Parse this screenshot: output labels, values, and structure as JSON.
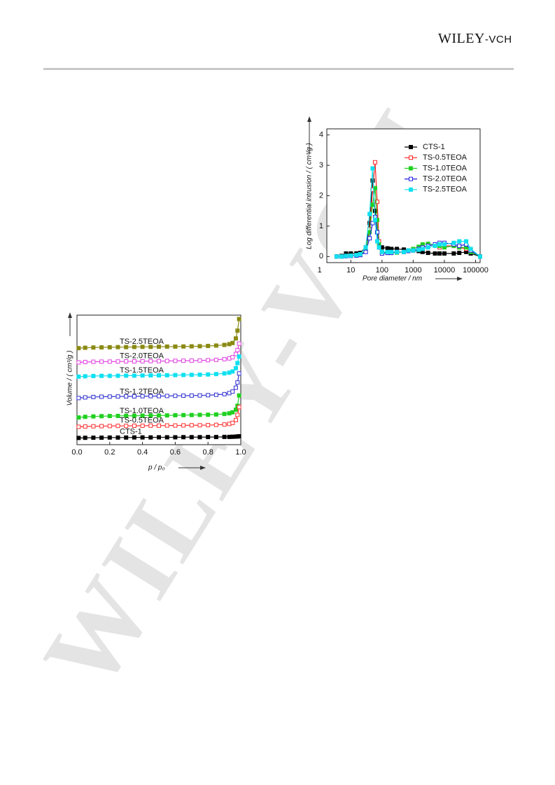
{
  "header": {
    "logo_main": "WILEY",
    "logo_suffix": "-VCH"
  },
  "watermark": "WILEY-VCH",
  "chart_data": [
    {
      "type": "line",
      "log_x": true,
      "x_label": "Pore diameter / nm",
      "y_label": "Log differential intrusion / ( cm³/g )",
      "xlim": [
        1.7,
        140000
      ],
      "xticks": [
        1,
        10,
        100,
        1000,
        10000,
        100000
      ],
      "ylim": [
        -0.2,
        4.2
      ],
      "yticks": [
        0,
        1,
        2,
        3,
        4
      ],
      "legend": "upper-right",
      "x": [
        3.5,
        5,
        7,
        10,
        15,
        20,
        30,
        40,
        50,
        60,
        70,
        80,
        100,
        150,
        200,
        300,
        500,
        700,
        1000,
        1500,
        2000,
        3000,
        5000,
        7000,
        10000,
        20000,
        30000,
        50000,
        70000,
        140000
      ],
      "series": [
        {
          "name": "CTS-1",
          "color": "#000000",
          "marker_fill": true,
          "values": [
            0,
            0.02,
            0.1,
            0.1,
            0.1,
            0.12,
            0.3,
            1.1,
            2.5,
            1.5,
            0.8,
            0.4,
            0.3,
            0.27,
            0.25,
            0.25,
            0.23,
            0.2,
            0.2,
            0.18,
            0.15,
            0.12,
            0.1,
            0.1,
            0.1,
            0.1,
            0.12,
            0.15,
            0.1,
            0
          ]
        },
        {
          "name": "TS-0.5TEOA",
          "color": "#ff2020",
          "marker_fill": false,
          "values": [
            0,
            0,
            0.02,
            0.03,
            0.03,
            0.05,
            0.2,
            0.9,
            2.2,
            3.1,
            1.8,
            0.5,
            0.1,
            0.12,
            0.13,
            0.15,
            0.15,
            0.18,
            0.2,
            0.25,
            0.3,
            0.35,
            0.4,
            0.3,
            0.35,
            0.35,
            0.3,
            0.25,
            0.2,
            0
          ]
        },
        {
          "name": "TS-1.0TEOA",
          "color": "#20d020",
          "marker_fill": true,
          "values": [
            0,
            0,
            0.02,
            0.03,
            0.04,
            0.06,
            0.2,
            0.8,
            1.7,
            2.25,
            1.2,
            0.4,
            0.15,
            0.12,
            0.12,
            0.13,
            0.15,
            0.2,
            0.25,
            0.32,
            0.4,
            0.42,
            0.38,
            0.35,
            0.3,
            0.35,
            0.3,
            0.3,
            0.15,
            0
          ]
        },
        {
          "name": "TS-2.0TEOA",
          "color": "#2020e0",
          "marker_fill": false,
          "values": [
            0,
            0,
            0.01,
            0.02,
            0.03,
            0.05,
            0.15,
            0.6,
            1.1,
            1.3,
            0.8,
            0.3,
            0.1,
            0.12,
            0.12,
            0.15,
            0.15,
            0.18,
            0.2,
            0.25,
            0.3,
            0.35,
            0.4,
            0.45,
            0.45,
            0.4,
            0.35,
            0.4,
            0.2,
            0
          ]
        },
        {
          "name": "TS-2.5TEOA",
          "color": "#10e0f0",
          "marker_fill": true,
          "values": [
            0,
            0,
            0.02,
            0.03,
            0.05,
            0.08,
            0.3,
            1.4,
            2.9,
            1.2,
            0.5,
            0.3,
            0.15,
            0.15,
            0.15,
            0.15,
            0.15,
            0.2,
            0.2,
            0.22,
            0.25,
            0.3,
            0.35,
            0.4,
            0.4,
            0.45,
            0.5,
            0.5,
            0.25,
            0
          ]
        }
      ]
    },
    {
      "type": "line",
      "log_x": false,
      "series_labels": true,
      "x_label": "p / p₀",
      "y_label": "Volume / ( cm³/g )",
      "xlim": [
        0,
        1
      ],
      "xticks": [
        {
          "value": 0,
          "label": "0.0"
        },
        0.2,
        0.4,
        0.6,
        0.8,
        {
          "value": 1,
          "label": "1.0"
        }
      ],
      "ylim": [
        0,
        100
      ],
      "x": [
        0.01,
        0.05,
        0.1,
        0.15,
        0.2,
        0.25,
        0.3,
        0.35,
        0.4,
        0.45,
        0.5,
        0.55,
        0.6,
        0.65,
        0.7,
        0.75,
        0.8,
        0.85,
        0.9,
        0.93,
        0.95,
        0.97,
        0.98,
        0.99
      ],
      "series": [
        {
          "name": "TS-2.5TEOA",
          "color": "#8a8a14",
          "marker_fill": true,
          "values": [
            74.5,
            74.8,
            75,
            75.1,
            75.2,
            75.3,
            75.3,
            75.4,
            75.5,
            75.5,
            75.6,
            75.7,
            75.7,
            75.8,
            75.9,
            76,
            76.2,
            76.5,
            77,
            77.6,
            78.5,
            82,
            88,
            97
          ]
        },
        {
          "name": "TS-2.0TEOA",
          "color": "#e040e0",
          "marker_fill": false,
          "values": [
            63.5,
            63.8,
            64,
            64.1,
            64.1,
            64.2,
            64.3,
            64.3,
            64.4,
            64.5,
            64.5,
            64.6,
            64.7,
            64.8,
            64.9,
            65,
            65.2,
            65.5,
            66,
            66.6,
            67.5,
            70,
            73,
            78
          ]
        },
        {
          "name": "TS-1.5TEOA",
          "color": "#10e0f0",
          "marker_fill": true,
          "values": [
            52.5,
            52.8,
            53,
            53.1,
            53.1,
            53.2,
            53.3,
            53.3,
            53.4,
            53.5,
            53.5,
            53.6,
            53.7,
            53.8,
            53.9,
            54,
            54.2,
            54.5,
            55,
            55.6,
            56.5,
            59,
            63,
            68
          ]
        },
        {
          "name": "TS-1.2TEOA",
          "color": "#3030d0",
          "marker_fill": false,
          "values": [
            36,
            36.5,
            36.8,
            37,
            37.1,
            37.2,
            37.3,
            37.3,
            37.4,
            37.5,
            37.5,
            37.6,
            37.7,
            37.8,
            37.9,
            38,
            38.2,
            38.5,
            39,
            39.8,
            41,
            44,
            48,
            55
          ]
        },
        {
          "name": "TS-1.0TEOA",
          "color": "#20d020",
          "marker_fill": true,
          "values": [
            21,
            21.5,
            21.8,
            22,
            22.1,
            22.2,
            22.3,
            22.3,
            22.4,
            22.5,
            22.5,
            22.6,
            22.7,
            22.8,
            22.9,
            23,
            23.1,
            23.3,
            23.7,
            24.2,
            25,
            27,
            30,
            38
          ]
        },
        {
          "name": "TS-0.5TEOA",
          "color": "#ff3030",
          "marker_fill": false,
          "values": [
            13.8,
            14,
            14.2,
            14.3,
            14.4,
            14.5,
            14.5,
            14.6,
            14.6,
            14.7,
            14.7,
            14.8,
            14.8,
            14.9,
            15,
            15,
            15.1,
            15.3,
            15.6,
            16,
            16.8,
            19,
            23,
            29
          ]
        },
        {
          "name": "CTS-1",
          "color": "#000000",
          "marker_fill": true,
          "values": [
            5.2,
            5.3,
            5.4,
            5.4,
            5.5,
            5.5,
            5.5,
            5.6,
            5.6,
            5.6,
            5.7,
            5.7,
            5.7,
            5.8,
            5.8,
            5.8,
            5.9,
            5.9,
            6,
            6,
            6.1,
            6.2,
            6.3,
            6.5
          ]
        }
      ]
    }
  ]
}
